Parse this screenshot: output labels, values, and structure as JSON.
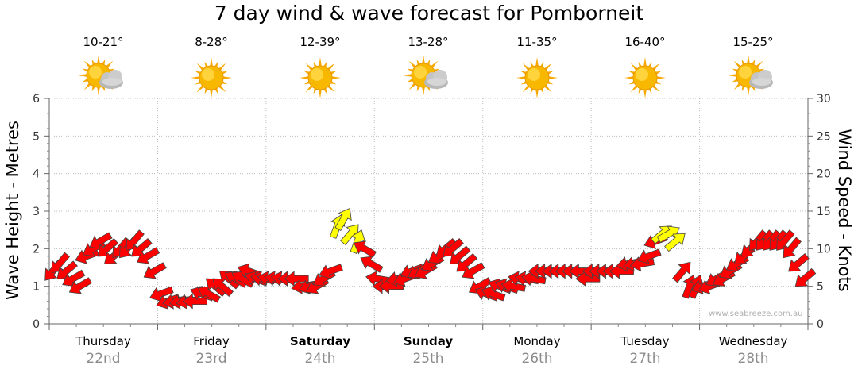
{
  "title": "7 day wind & wave forecast for Pomborneit",
  "credit": "www.seabreeze.com.au",
  "days": [
    {
      "name": "Thursday",
      "date": "22nd",
      "temp": "10-21°",
      "icon": "sun-cloud-icon",
      "bold": false
    },
    {
      "name": "Friday",
      "date": "23rd",
      "temp": "8-28°",
      "icon": "sun-icon",
      "bold": false
    },
    {
      "name": "Saturday",
      "date": "24th",
      "temp": "12-39°",
      "icon": "sun-icon",
      "bold": true
    },
    {
      "name": "Sunday",
      "date": "25th",
      "temp": "13-28°",
      "icon": "sun-cloud-icon",
      "bold": true
    },
    {
      "name": "Monday",
      "date": "26th",
      "temp": "11-35°",
      "icon": "sun-icon",
      "bold": false
    },
    {
      "name": "Tuesday",
      "date": "27th",
      "temp": "16-40°",
      "icon": "sun-icon",
      "bold": false
    },
    {
      "name": "Wednesday",
      "date": "28th",
      "temp": "15-25°",
      "icon": "sun-cloud-icon",
      "bold": false
    }
  ],
  "chart_data": {
    "type": "line",
    "title": "7 day wind & wave forecast for Pomborneit",
    "ylabel_left": "Wave Height - Metres",
    "ylabel_right": "Wind Speed - Knots",
    "ylim_left": [
      0,
      6
    ],
    "yticks_left": [
      0,
      1,
      2,
      3,
      4,
      5,
      6
    ],
    "ylim_right": [
      0,
      30
    ],
    "yticks_right": [
      0,
      5,
      10,
      15,
      20,
      25,
      30
    ],
    "grid": true,
    "categories": [
      "Thursday 22nd",
      "Friday 23rd",
      "Saturday 24th",
      "Sunday 25th",
      "Monday 26th",
      "Tuesday 27th",
      "Wednesday 28th"
    ],
    "series": [
      {
        "kind": "wind-arrows",
        "color": "#ff0000",
        "highlight_color": "#ffff00",
        "samples_per_day": 16,
        "values": [
          [
            7,
            8,
            7,
            6,
            5,
            9,
            10,
            11,
            10,
            9,
            10,
            10,
            11,
            10,
            9,
            7
          ],
          [
            4,
            3,
            3,
            3,
            3,
            3,
            4,
            4,
            5,
            5,
            6,
            6,
            6,
            7,
            6,
            6
          ],
          [
            6,
            6,
            6,
            6,
            6,
            5,
            5,
            5,
            6,
            7,
            13,
            14,
            12,
            11,
            10,
            8
          ],
          [
            6,
            5,
            5,
            6,
            6,
            7,
            7,
            7,
            8,
            9,
            10,
            10,
            9,
            8,
            7,
            5
          ],
          [
            4,
            4,
            5,
            5,
            5,
            6,
            6,
            6,
            7,
            7,
            7,
            7,
            7,
            7,
            7,
            6
          ],
          [
            7,
            7,
            7,
            7,
            7,
            8,
            8,
            8,
            9,
            11,
            12,
            12,
            11,
            7,
            5,
            5
          ],
          [
            5,
            5,
            6,
            6,
            7,
            8,
            9,
            10,
            11,
            11,
            11,
            11,
            11,
            10,
            8,
            6
          ]
        ],
        "direction_deg": [
          [
            40,
            40,
            50,
            60,
            60,
            70,
            60,
            60,
            50,
            50,
            40,
            40,
            40,
            50,
            60,
            60
          ],
          [
            70,
            70,
            80,
            80,
            80,
            90,
            110,
            120,
            130,
            130,
            130,
            120,
            120,
            110,
            110,
            100
          ],
          [
            100,
            100,
            100,
            90,
            90,
            80,
            70,
            60,
            60,
            70,
            200,
            210,
            220,
            200,
            120,
            120
          ],
          [
            100,
            90,
            90,
            80,
            70,
            70,
            60,
            60,
            60,
            60,
            50,
            50,
            50,
            50,
            60,
            60
          ],
          [
            110,
            110,
            110,
            110,
            100,
            100,
            100,
            100,
            90,
            90,
            90,
            90,
            90,
            90,
            90,
            90
          ],
          [
            90,
            90,
            90,
            90,
            90,
            80,
            80,
            80,
            70,
            70,
            230,
            240,
            230,
            220,
            200,
            200
          ],
          [
            70,
            70,
            60,
            60,
            60,
            60,
            50,
            50,
            40,
            40,
            40,
            40,
            40,
            40,
            50,
            50
          ]
        ],
        "highlighted_samples": [
          [
            2,
            10
          ],
          [
            2,
            11
          ],
          [
            2,
            12
          ],
          [
            2,
            13
          ],
          [
            5,
            10
          ],
          [
            5,
            11
          ],
          [
            5,
            12
          ]
        ]
      }
    ]
  }
}
